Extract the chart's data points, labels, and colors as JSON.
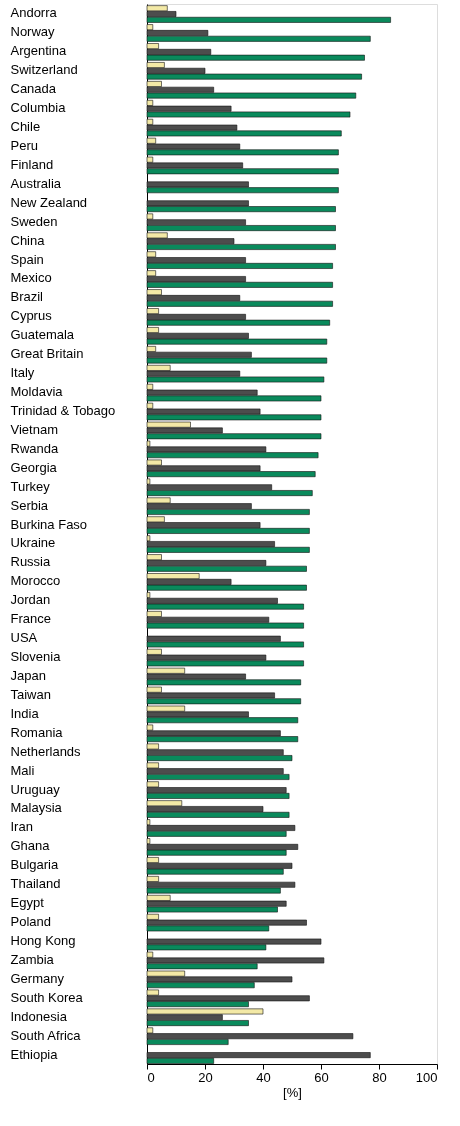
{
  "chart_data": {
    "type": "bar",
    "orientation": "horizontal",
    "xlabel": "[%]",
    "xlim": [
      0,
      100
    ],
    "xticks": [
      0,
      20,
      40,
      60,
      80,
      100
    ],
    "grid": false,
    "categories": [
      "Andorra",
      "Norway",
      "Argentina",
      "Switzerland",
      "Canada",
      "Columbia",
      "Chile",
      "Peru",
      "Finland",
      "Australia",
      "New Zealand",
      "Sweden",
      "China",
      "Spain",
      "Mexico",
      "Brazil",
      "Cyprus",
      "Guatemala",
      "Great Britain",
      "Italy",
      "Moldavia",
      "Trinidad & Tobago",
      "Vietnam",
      "Rwanda",
      "Georgia",
      "Turkey",
      "Serbia",
      "Burkina Faso",
      "Ukraine",
      "Russia",
      "Morocco",
      "Jordan",
      "France",
      "USA",
      "Slovenia",
      "Japan",
      "Taiwan",
      "India",
      "Romania",
      "Netherlands",
      "Mali",
      "Uruguay",
      "Malaysia",
      "Iran",
      "Ghana",
      "Bulgaria",
      "Thailand",
      "Egypt",
      "Poland",
      "Hong Kong",
      "Zambia",
      "Germany",
      "South Korea",
      "Indonesia",
      "South Africa",
      "Ethiopia"
    ],
    "series": [
      {
        "color": "#f3e9a6",
        "values": [
          7,
          2,
          4,
          6,
          5,
          2,
          2,
          3,
          2,
          null,
          null,
          2,
          7,
          3,
          3,
          5,
          4,
          4,
          3,
          8,
          2,
          2,
          15,
          1,
          5,
          1,
          8,
          6,
          1,
          5,
          18,
          1,
          5,
          null,
          5,
          13,
          5,
          13,
          2,
          4,
          4,
          4,
          12,
          1,
          1,
          4,
          4,
          8,
          4,
          null,
          2,
          13,
          4,
          40,
          2,
          null
        ]
      },
      {
        "color": "#4d4d4d",
        "values": [
          10,
          21,
          22,
          20,
          23,
          29,
          31,
          32,
          33,
          35,
          35,
          34,
          30,
          34,
          34,
          32,
          34,
          35,
          36,
          32,
          38,
          39,
          26,
          41,
          39,
          43,
          36,
          39,
          44,
          41,
          29,
          45,
          42,
          46,
          41,
          34,
          44,
          35,
          46,
          47,
          47,
          48,
          40,
          51,
          52,
          50,
          51,
          48,
          55,
          60,
          61,
          50,
          56,
          26,
          71,
          77
        ]
      },
      {
        "color": "#0a8a5c",
        "values": [
          84,
          77,
          75,
          74,
          72,
          70,
          67,
          66,
          66,
          66,
          65,
          65,
          65,
          64,
          64,
          64,
          63,
          62,
          62,
          61,
          60,
          60,
          60,
          59,
          58,
          57,
          56,
          56,
          56,
          55,
          55,
          54,
          54,
          54,
          54,
          53,
          53,
          52,
          52,
          50,
          49,
          49,
          49,
          48,
          48,
          47,
          46,
          45,
          42,
          41,
          38,
          37,
          35,
          35,
          28,
          23
        ]
      }
    ]
  }
}
